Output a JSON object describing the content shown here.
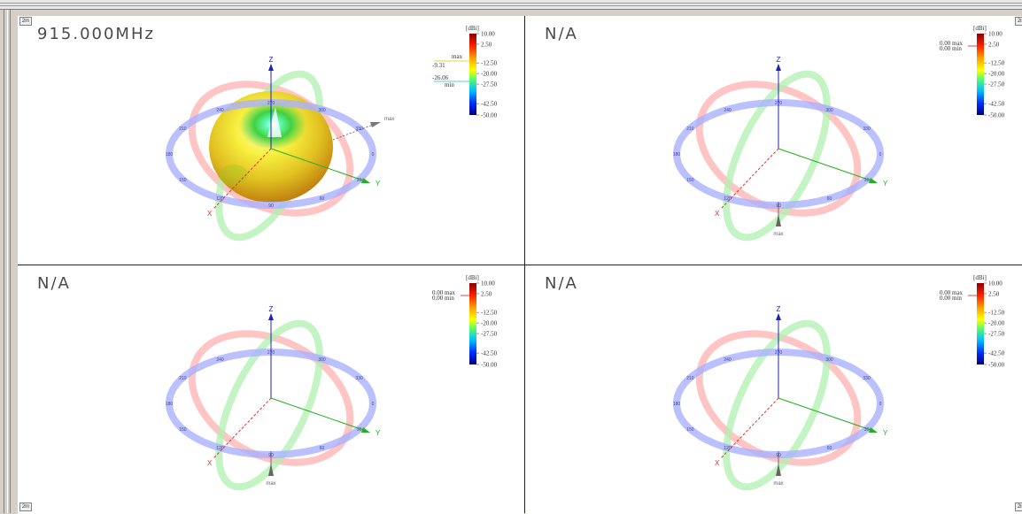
{
  "panes": [
    {
      "title": "915.000MHz",
      "has_pattern": true,
      "colorbar": {
        "unit": "[dBi]",
        "ticks": [
          "10.00",
          "2.50",
          "-12.50",
          "-20.00",
          "-27.50",
          "-42.50",
          "-50.00"
        ]
      },
      "max_label": "max",
      "min_label": "min",
      "max_value": "-9.31",
      "min_value": "-26.06",
      "axis_z": "Z",
      "axis_y": "Y",
      "axis_x": "X",
      "pattern_max_label": "max"
    },
    {
      "title": "N/A",
      "has_pattern": false,
      "colorbar": {
        "unit": "[dBi]",
        "ticks": [
          "10.00",
          "2.50",
          "-12.50",
          "-20.00",
          "-27.50",
          "-42.50",
          "-50.00"
        ]
      },
      "max_label": "max",
      "min_label": "min",
      "max_value": "0.00",
      "min_value": "0.00",
      "axis_z": "Z",
      "axis_y": "Y",
      "axis_x": "X",
      "pattern_max_label": "max"
    },
    {
      "title": "N/A",
      "has_pattern": false,
      "colorbar": {
        "unit": "[dBi]",
        "ticks": [
          "10.00",
          "2.50",
          "-12.50",
          "-20.00",
          "-27.50",
          "-42.50",
          "-50.00"
        ]
      },
      "max_label": "max",
      "min_label": "min",
      "max_value": "0.00",
      "min_value": "0.00",
      "axis_z": "Z",
      "axis_y": "Y",
      "axis_x": "X",
      "pattern_max_label": "max"
    },
    {
      "title": "N/A",
      "has_pattern": false,
      "colorbar": {
        "unit": "[dBi]",
        "ticks": [
          "10.00",
          "2.50",
          "-12.50",
          "-20.00",
          "-27.50",
          "-42.50",
          "-50.00"
        ]
      },
      "max_label": "max",
      "min_label": "min",
      "max_value": "0.00",
      "min_value": "0.00",
      "axis_z": "Z",
      "axis_y": "Y",
      "axis_x": "X",
      "pattern_max_label": "max"
    }
  ],
  "zoom_tags": [
    "2m",
    "2m",
    "2m",
    "2m"
  ],
  "ring_labels": {
    "azimuth": [
      "0",
      "30",
      "60",
      "90",
      "120",
      "150",
      "180",
      "210",
      "240",
      "270",
      "300",
      "330"
    ],
    "colors": {
      "azimuth": "#aab0ff",
      "elevation_xz": "#ffb0b0",
      "elevation_yz": "#b0f0b0"
    }
  },
  "axis_colors": {
    "x": "#e03030",
    "y": "#20b020",
    "z": "#2020c0"
  }
}
